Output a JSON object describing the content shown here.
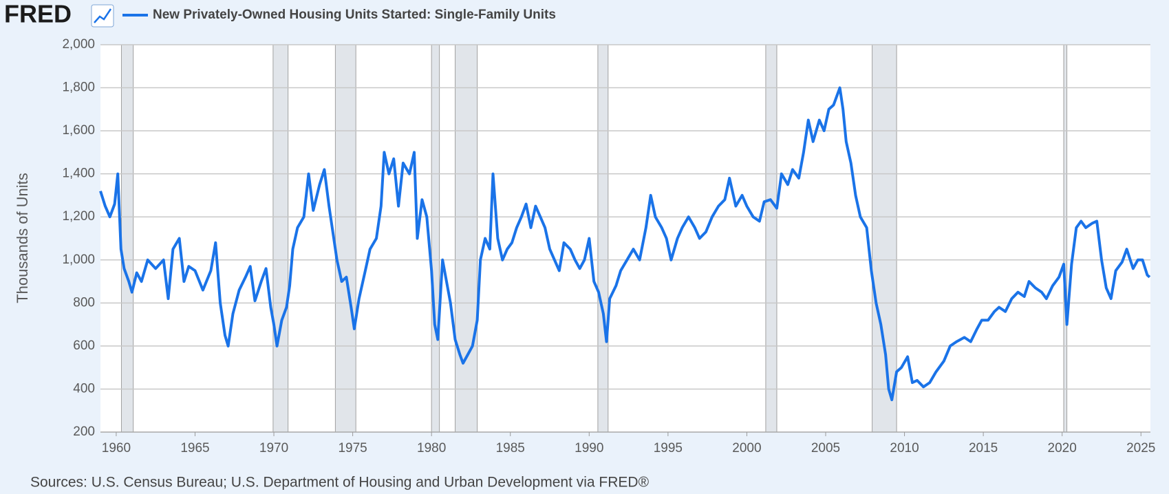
{
  "logo": "FRED",
  "chart_data": {
    "type": "line",
    "title": "New Privately-Owned Housing Units Started: Single-Family Units",
    "y_label": "Thousands of Units",
    "source": "Sources: U.S. Census Bureau; U.S. Department of Housing and Urban Development via FRED®",
    "xlim": [
      1959,
      2025.6
    ],
    "ylim": [
      200,
      2000
    ],
    "xticks": [
      1960,
      1965,
      1970,
      1975,
      1980,
      1985,
      1990,
      1995,
      2000,
      2005,
      2010,
      2015,
      2020,
      2025
    ],
    "yticks": [
      200,
      400,
      600,
      800,
      {
        "value": 1000,
        "label": "1,000"
      },
      {
        "value": 1200,
        "label": "1,200"
      },
      {
        "value": 1400,
        "label": "1,400"
      },
      {
        "value": 1600,
        "label": "1,600"
      },
      {
        "value": 1800,
        "label": "1,800"
      },
      {
        "value": 2000,
        "label": "2,000"
      }
    ],
    "grid": true,
    "recessions": [
      [
        1960.33,
        1961.08
      ],
      [
        1969.95,
        1970.9
      ],
      [
        1973.9,
        1975.2
      ],
      [
        1980.0,
        1980.5
      ],
      [
        1981.5,
        1982.9
      ],
      [
        1990.55,
        1991.2
      ],
      [
        2001.2,
        2001.9
      ],
      [
        2007.95,
        2009.5
      ],
      [
        2020.1,
        2020.3
      ]
    ],
    "x": [
      1959.0,
      1959.3,
      1959.6,
      1959.9,
      1960.1,
      1960.3,
      1960.5,
      1960.8,
      1961.0,
      1961.3,
      1961.6,
      1962.0,
      1962.5,
      1963.0,
      1963.3,
      1963.6,
      1964.0,
      1964.3,
      1964.6,
      1965.0,
      1965.5,
      1966.0,
      1966.3,
      1966.6,
      1966.9,
      1967.1,
      1967.4,
      1967.8,
      1968.2,
      1968.5,
      1968.8,
      1969.2,
      1969.5,
      1969.8,
      1970.0,
      1970.2,
      1970.5,
      1970.8,
      1971.0,
      1971.2,
      1971.5,
      1971.9,
      1972.2,
      1972.5,
      1972.9,
      1973.2,
      1973.5,
      1973.8,
      1974.0,
      1974.3,
      1974.6,
      1974.9,
      1975.1,
      1975.4,
      1975.8,
      1976.1,
      1976.5,
      1976.8,
      1977.0,
      1977.3,
      1977.6,
      1977.9,
      1978.2,
      1978.6,
      1978.9,
      1979.1,
      1979.4,
      1979.7,
      1980.0,
      1980.2,
      1980.4,
      1980.7,
      1980.9,
      1981.2,
      1981.5,
      1981.8,
      1982.0,
      1982.3,
      1982.6,
      1982.9,
      1983.1,
      1983.4,
      1983.7,
      1983.9,
      1984.2,
      1984.5,
      1984.8,
      1985.1,
      1985.4,
      1985.7,
      1986.0,
      1986.3,
      1986.6,
      1986.9,
      1987.2,
      1987.5,
      1987.8,
      1988.1,
      1988.4,
      1988.8,
      1989.1,
      1989.4,
      1989.7,
      1990.0,
      1990.3,
      1990.6,
      1990.9,
      1991.1,
      1991.3,
      1991.7,
      1992.0,
      1992.4,
      1992.8,
      1993.2,
      1993.6,
      1993.9,
      1994.2,
      1994.6,
      1994.9,
      1995.2,
      1995.6,
      1995.9,
      1996.3,
      1996.7,
      1997.0,
      1997.4,
      1997.8,
      1998.2,
      1998.6,
      1998.9,
      1999.3,
      1999.7,
      2000.0,
      2000.4,
      2000.8,
      2001.1,
      2001.5,
      2001.9,
      2002.2,
      2002.6,
      2002.9,
      2003.3,
      2003.6,
      2003.9,
      2004.2,
      2004.6,
      2004.9,
      2005.2,
      2005.5,
      2005.9,
      2006.1,
      2006.3,
      2006.6,
      2006.9,
      2007.2,
      2007.6,
      2007.9,
      2008.2,
      2008.5,
      2008.8,
      2009.0,
      2009.2,
      2009.5,
      2009.8,
      2010.2,
      2010.5,
      2010.8,
      2011.2,
      2011.6,
      2012.0,
      2012.5,
      2012.9,
      2013.3,
      2013.8,
      2014.2,
      2014.6,
      2014.9,
      2015.3,
      2015.7,
      2016.0,
      2016.4,
      2016.8,
      2017.2,
      2017.6,
      2017.9,
      2018.3,
      2018.7,
      2019.0,
      2019.4,
      2019.8,
      2020.1,
      2020.3,
      2020.6,
      2020.9,
      2021.2,
      2021.5,
      2021.9,
      2022.2,
      2022.5,
      2022.8,
      2023.1,
      2023.4,
      2023.8,
      2024.1,
      2024.5,
      2024.8,
      2025.1,
      2025.4,
      2025.55
    ],
    "series": [
      {
        "name": "New Privately-Owned Housing Units Started: Single-Family Units",
        "color": "#1a73e8",
        "values": [
          1320,
          1250,
          1200,
          1260,
          1400,
          1050,
          960,
          900,
          850,
          940,
          900,
          1000,
          960,
          1000,
          820,
          1050,
          1100,
          900,
          970,
          950,
          860,
          950,
          1080,
          800,
          650,
          600,
          750,
          860,
          920,
          970,
          810,
          900,
          960,
          780,
          700,
          600,
          720,
          780,
          880,
          1050,
          1150,
          1200,
          1400,
          1230,
          1350,
          1420,
          1250,
          1100,
          1000,
          900,
          920,
          780,
          680,
          820,
          950,
          1050,
          1100,
          1250,
          1500,
          1400,
          1470,
          1250,
          1450,
          1400,
          1500,
          1100,
          1280,
          1200,
          950,
          700,
          630,
          1000,
          920,
          800,
          630,
          560,
          520,
          560,
          600,
          720,
          1000,
          1100,
          1050,
          1400,
          1100,
          1000,
          1050,
          1080,
          1150,
          1200,
          1260,
          1150,
          1250,
          1200,
          1150,
          1050,
          1000,
          950,
          1080,
          1050,
          1000,
          960,
          1000,
          1100,
          900,
          850,
          750,
          620,
          820,
          880,
          950,
          1000,
          1050,
          1000,
          1150,
          1300,
          1200,
          1150,
          1100,
          1000,
          1100,
          1150,
          1200,
          1150,
          1100,
          1130,
          1200,
          1250,
          1280,
          1380,
          1250,
          1300,
          1250,
          1200,
          1180,
          1270,
          1280,
          1240,
          1400,
          1350,
          1420,
          1380,
          1500,
          1650,
          1550,
          1650,
          1600,
          1700,
          1720,
          1800,
          1700,
          1550,
          1450,
          1300,
          1200,
          1150,
          950,
          800,
          700,
          560,
          400,
          350,
          480,
          500,
          550,
          430,
          440,
          410,
          430,
          480,
          530,
          600,
          620,
          640,
          620,
          680,
          720,
          720,
          760,
          780,
          760,
          820,
          850,
          830,
          900,
          870,
          850,
          820,
          880,
          920,
          980,
          700,
          980,
          1150,
          1180,
          1150,
          1170,
          1180,
          1000,
          870,
          820,
          950,
          990,
          1050,
          960,
          1000,
          1000,
          930,
          920
        ]
      }
    ]
  }
}
